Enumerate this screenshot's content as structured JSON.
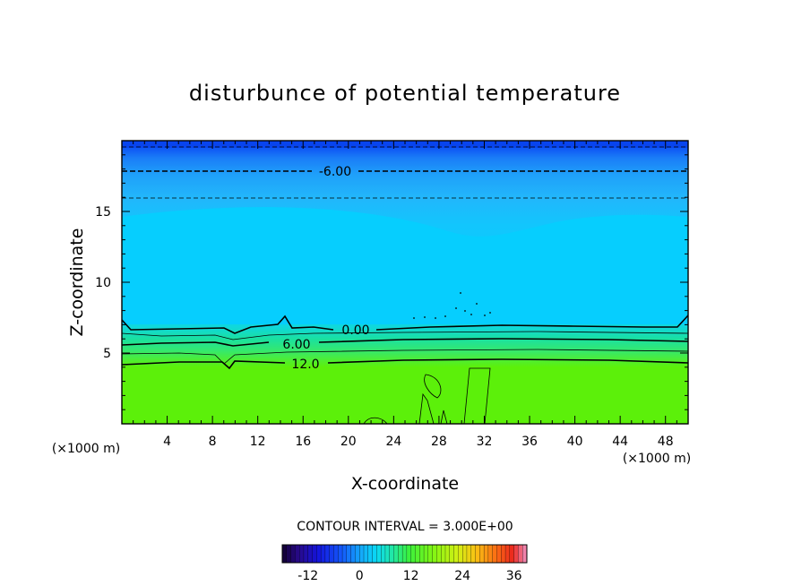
{
  "chart_data": {
    "type": "heatmap",
    "title": "disturbunce of potential temperature",
    "xlabel": "X-coordinate",
    "ylabel": "Z-coordinate",
    "x_unit": "(×1000 m)",
    "z_unit": "(×1000 m)",
    "xlim": [
      0,
      50
    ],
    "ylim": [
      0,
      20
    ],
    "x_ticks": [
      "4",
      "8",
      "12",
      "16",
      "20",
      "24",
      "28",
      "32",
      "36",
      "40",
      "44",
      "48"
    ],
    "y_ticks": [
      "5",
      "10",
      "15"
    ],
    "contour_labels": [
      {
        "text": "-6.00",
        "x": 19,
        "z": 17.8
      },
      {
        "text": "0.00",
        "x": 21,
        "z": 6.6
      },
      {
        "text": "6.00",
        "x": 15.5,
        "z": 5.5
      },
      {
        "text": "12.0",
        "x": 16,
        "z": 4.2
      }
    ],
    "contour_interval_text": "CONTOUR INTERVAL = 3.000E+00",
    "colorbar": {
      "min": -18,
      "max": 39,
      "tick_values": [
        -12,
        0,
        12,
        24,
        36
      ],
      "tick_labels": [
        "-12",
        "0",
        "12",
        "24",
        "36"
      ]
    },
    "field_description": [
      {
        "band": "z 19-20",
        "value": -12
      },
      {
        "band": "z 15-19",
        "value": -6
      },
      {
        "band": "z 7-15",
        "value": -3
      },
      {
        "band": "z 6-7",
        "value": 0
      },
      {
        "band": "z 4.5-6",
        "value": 6
      },
      {
        "band": "z 0-4.5",
        "value": 12
      }
    ]
  }
}
